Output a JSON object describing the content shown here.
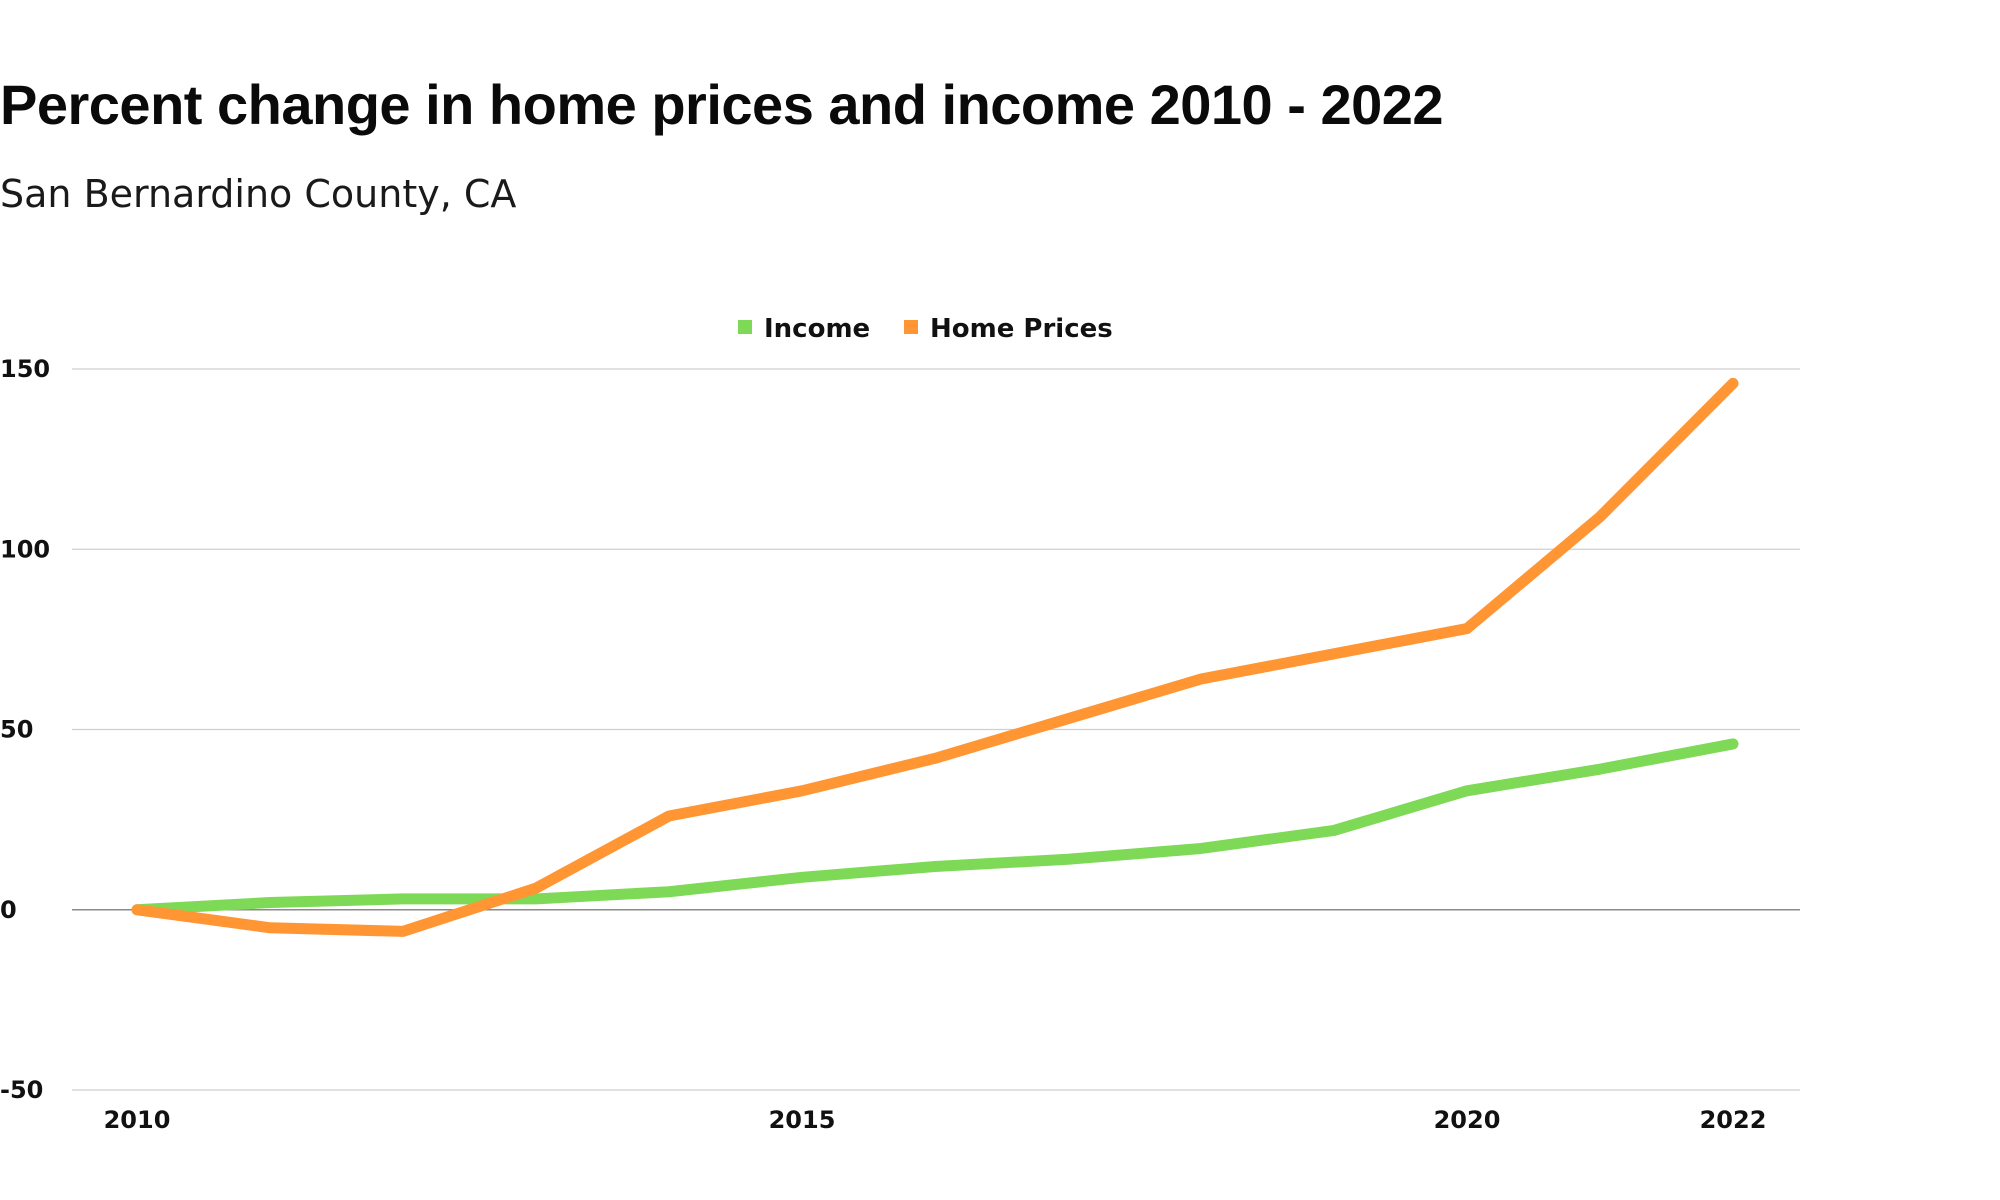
{
  "title": "Percent change in home prices and income 2010 - 2022",
  "subtitle": "San Bernardino County, CA",
  "chart_data": {
    "type": "line",
    "title": "Percent change in home prices and income 2010 - 2022",
    "subtitle": "San Bernardino County, CA",
    "xlabel": "",
    "ylabel": "",
    "x": [
      2010,
      2011,
      2012,
      2013,
      2014,
      2015,
      2016,
      2017,
      2018,
      2019,
      2020,
      2021,
      2022
    ],
    "x_ticks": [
      "2010",
      "2015",
      "2020",
      "2022"
    ],
    "y_ticks": [
      "150",
      "100",
      "50",
      "0",
      "-50"
    ],
    "ylim": [
      -50,
      150
    ],
    "xlim": [
      2010,
      2022
    ],
    "grid": true,
    "legend_position": "top-center",
    "series": [
      {
        "name": "Income",
        "color": "#7ed957",
        "values": [
          0,
          2,
          3,
          3,
          5,
          9,
          12,
          14,
          17,
          22,
          33,
          39,
          46
        ]
      },
      {
        "name": "Home Prices",
        "color": "#ff9533",
        "values": [
          0,
          -5,
          -6,
          6,
          26,
          33,
          42,
          53,
          64,
          71,
          78,
          109,
          146
        ]
      }
    ]
  }
}
